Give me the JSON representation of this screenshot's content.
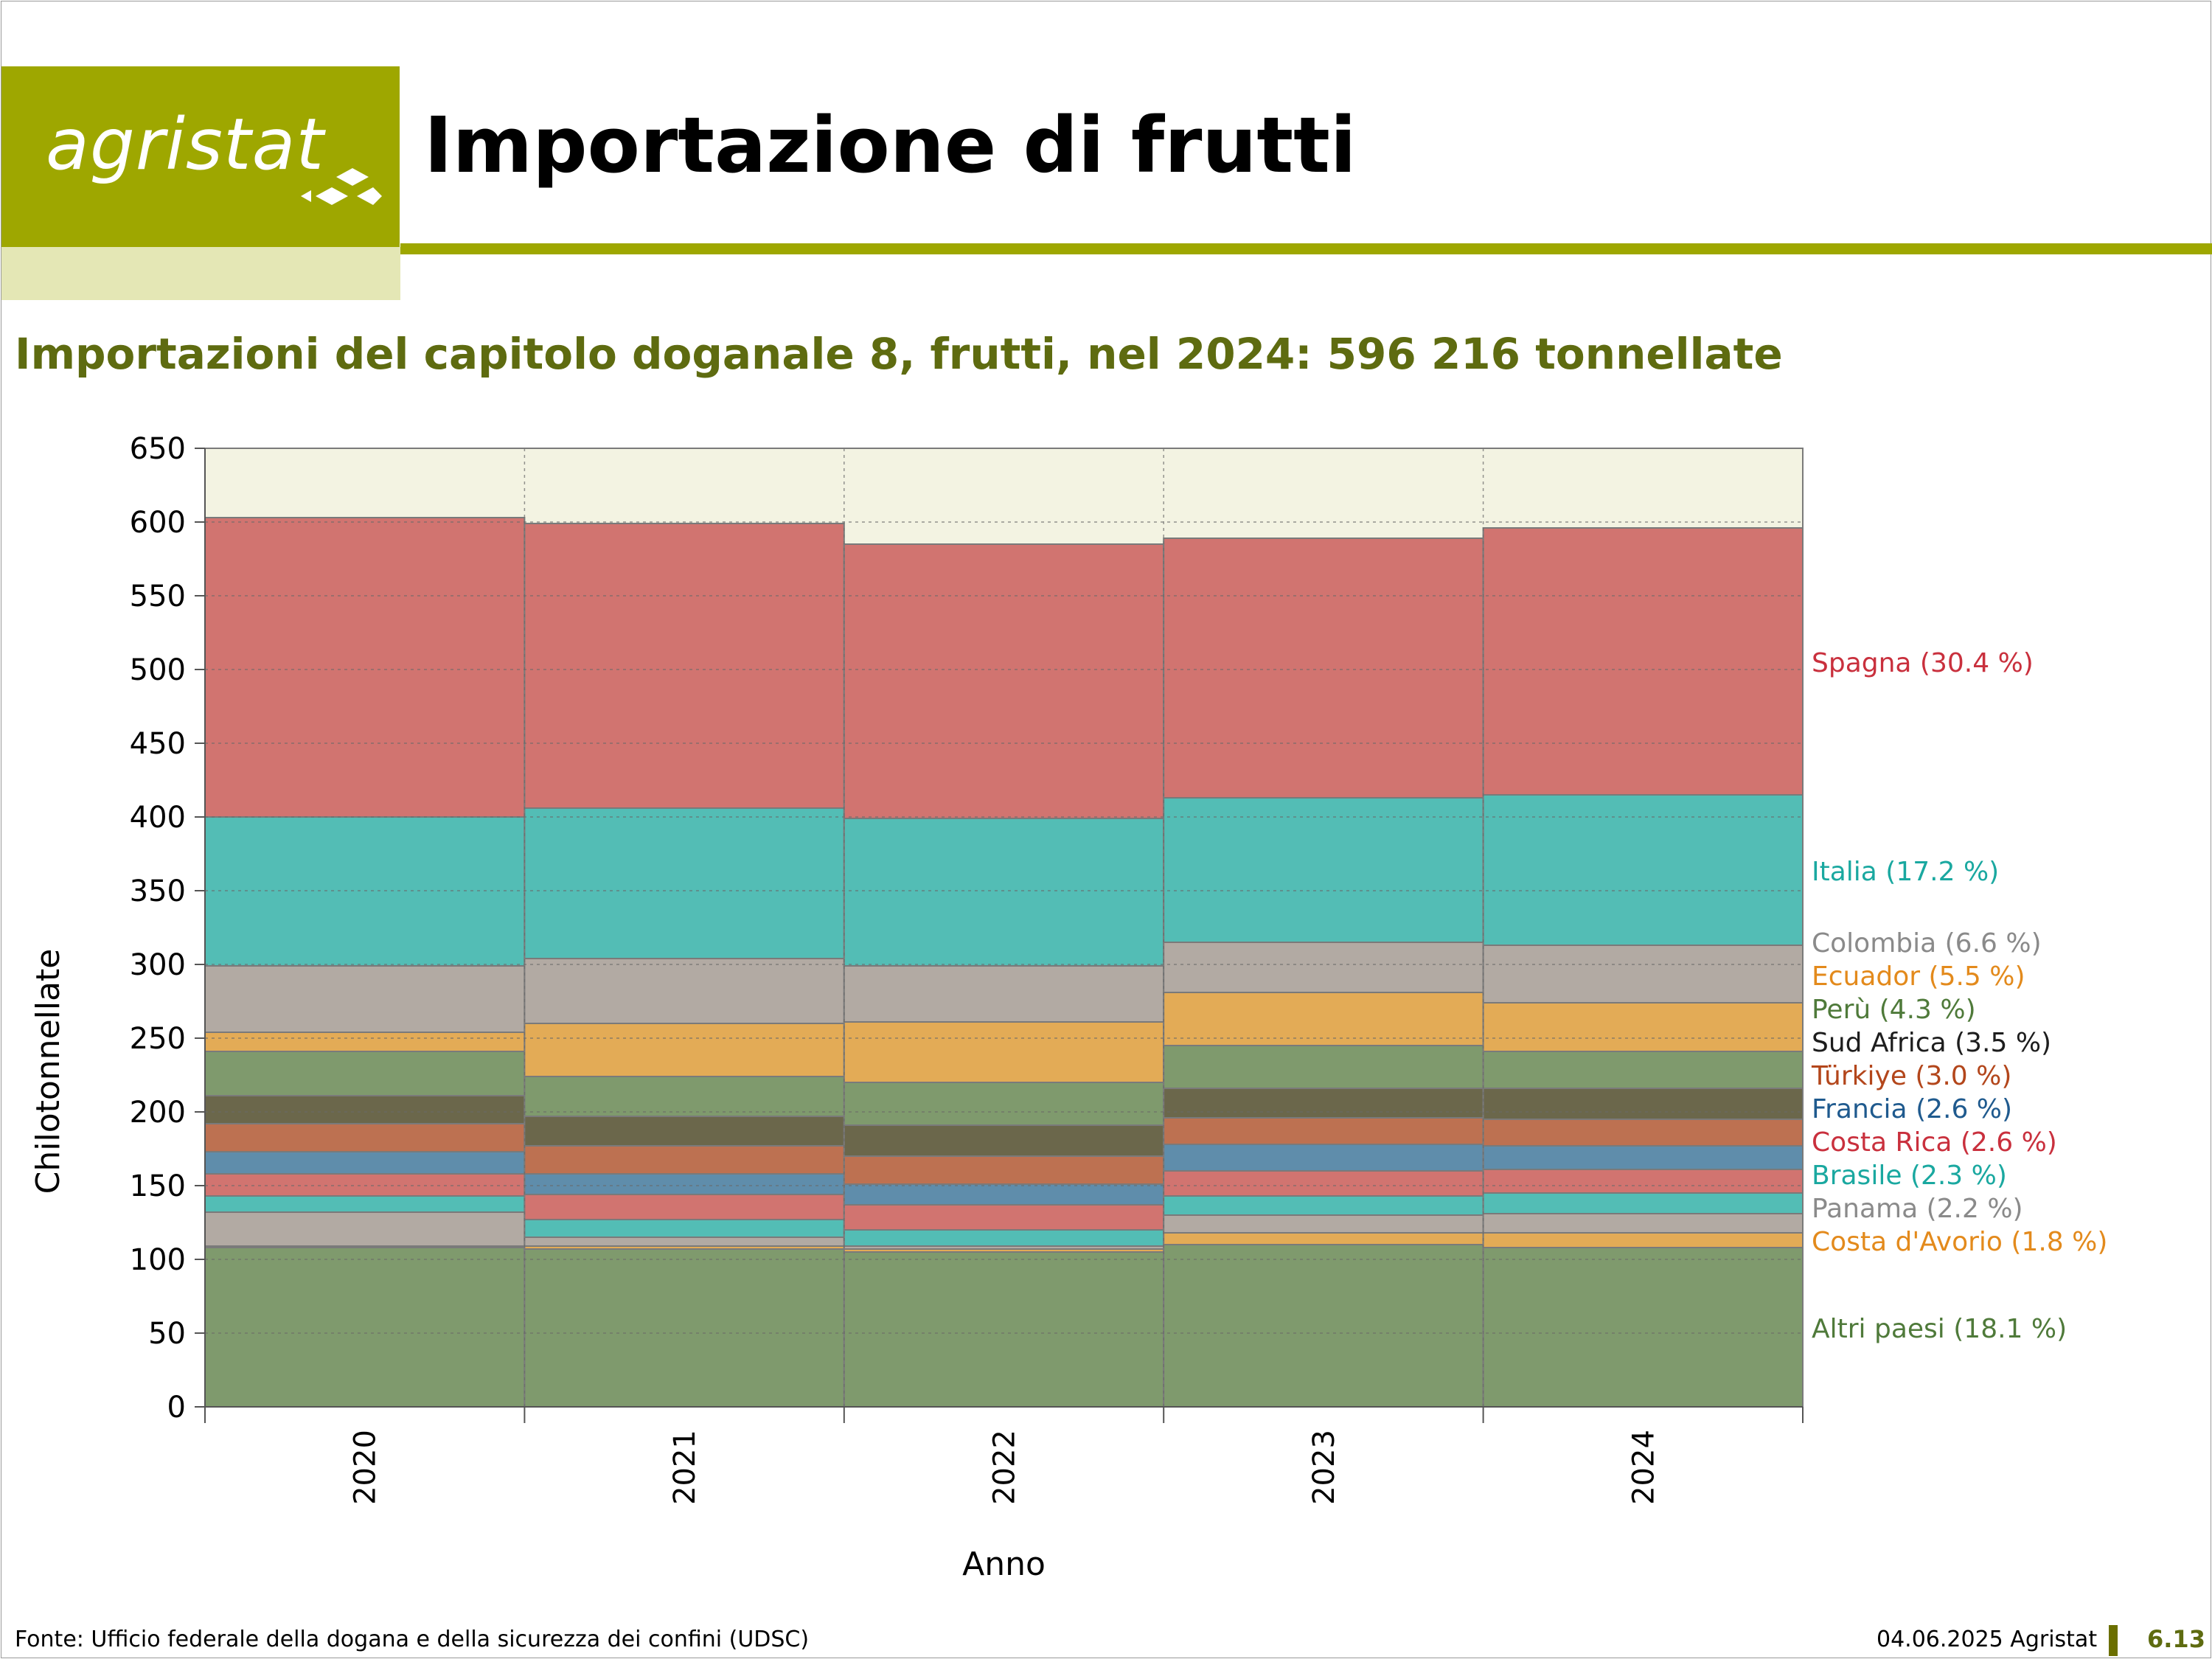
{
  "header": {
    "logo_text": "agristat",
    "title": "Importazione di frutti"
  },
  "subtitle": "Importazioni del capitolo doganale 8, frutti, nel 2024: 596 216 tonnellate",
  "footer": {
    "source": "Fonte: Ufficio federale della dogana e della sicurezza dei confini (UDSC)",
    "date": "04.06.2025 Agristat",
    "page": "6.13"
  },
  "colors": {
    "brand_olive": "#9ea700",
    "brand_light": "#e4e7b5",
    "subtitle": "#5e6b10",
    "plot_background": "#f3f3e2"
  },
  "chart_data": {
    "type": "bar",
    "stacked": true,
    "title": "",
    "xlabel": "Anno",
    "ylabel": "Chilotonnellate",
    "ylim": [
      0,
      650
    ],
    "yticks": [
      0,
      50,
      100,
      150,
      200,
      250,
      300,
      350,
      400,
      450,
      500,
      550,
      600,
      650
    ],
    "grid": true,
    "legend": "right, labels at segment level",
    "categories": [
      "2020",
      "2021",
      "2022",
      "2023",
      "2024"
    ],
    "series": [
      {
        "name": "Altri paesi",
        "label": "Altri paesi (18.1 %)",
        "color": "#7f9a6d",
        "label_color": "#4f7a3a",
        "values": [
          108,
          107,
          105,
          110,
          108
        ]
      },
      {
        "name": "Costa d'Avorio",
        "label": "Costa d'Avorio (1.8 %)",
        "color": "#e3ab56",
        "label_color": "#e38a1c",
        "values": [
          1,
          2,
          2,
          8,
          10
        ]
      },
      {
        "name": "Panama",
        "label": "Panama (2.2 %)",
        "color": "#b2aaa3",
        "label_color": "#8a8a8a",
        "values": [
          23,
          6,
          2,
          12,
          13
        ]
      },
      {
        "name": "Brasile",
        "label": "Brasile (2.3 %)",
        "color": "#53bdb5",
        "label_color": "#1aa8a0",
        "values": [
          11,
          12,
          11,
          13,
          14
        ]
      },
      {
        "name": "Costa Rica",
        "label": "Costa Rica (2.6 %)",
        "color": "#d17470",
        "label_color": "#c9303d",
        "values": [
          15,
          17,
          17,
          17,
          16
        ]
      },
      {
        "name": "Francia",
        "label": "Francia (2.6 %)",
        "color": "#5f8dab",
        "label_color": "#1f5a8e",
        "values": [
          15,
          14,
          14,
          18,
          16
        ]
      },
      {
        "name": "Türkiye",
        "label": "Türkiye (3.0 %)",
        "color": "#bd7151",
        "label_color": "#b3461b",
        "values": [
          19,
          19,
          19,
          18,
          18
        ]
      },
      {
        "name": "Sud Africa",
        "label": "Sud Africa (3.5 %)",
        "color": "#6b674b",
        "label_color": "#1d1d1d",
        "values": [
          19,
          20,
          21,
          20,
          21
        ]
      },
      {
        "name": "Perù",
        "label": "Perù (4.3 %)",
        "color": "#7f9a6d",
        "label_color": "#4f7a3a",
        "values": [
          30,
          27,
          29,
          29,
          25
        ]
      },
      {
        "name": "Ecuador",
        "label": "Ecuador (5.5 %)",
        "color": "#e3ab56",
        "label_color": "#e38a1c",
        "values": [
          13,
          36,
          41,
          36,
          33
        ]
      },
      {
        "name": "Colombia",
        "label": "Colombia (6.6 %)",
        "color": "#b2aaa3",
        "label_color": "#8a8a8a",
        "values": [
          45,
          44,
          38,
          34,
          39
        ]
      },
      {
        "name": "Italia",
        "label": "Italia (17.2 %)",
        "color": "#53bdb5",
        "label_color": "#1aa8a0",
        "values": [
          101,
          102,
          100,
          98,
          102
        ]
      },
      {
        "name": "Spagna",
        "label": "Spagna (30.4 %)",
        "color": "#d17470",
        "label_color": "#c9303d",
        "values": [
          203,
          193,
          186,
          176,
          181
        ]
      }
    ]
  }
}
